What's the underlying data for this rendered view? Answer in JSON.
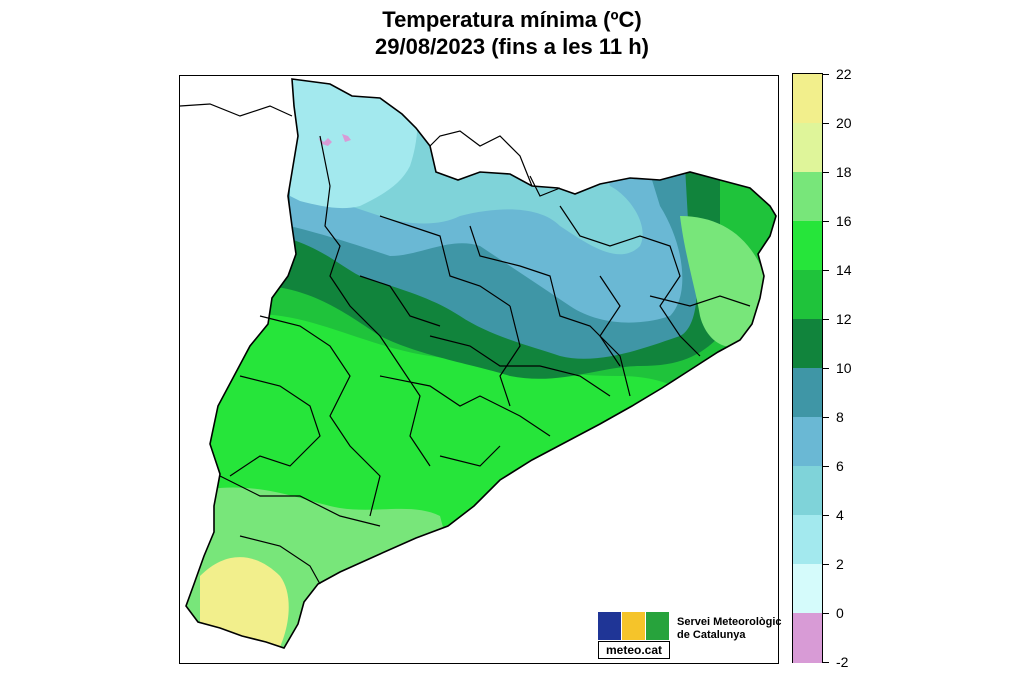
{
  "title": {
    "line1": "Temperatura mínima (ºC)",
    "line2": "29/08/2023 (fins a les 11 h)"
  },
  "legend": {
    "labels": [
      "22",
      "20",
      "18",
      "16",
      "14",
      "12",
      "10",
      "8",
      "6",
      "4",
      "2",
      "0",
      "-2"
    ],
    "colors": [
      "#f2ef8c",
      "#dff59a",
      "#78e67a",
      "#26e53a",
      "#1fc33b",
      "#11843c",
      "#3f96a6",
      "#6ab8d4",
      "#7fd3d9",
      "#a3e9ee",
      "#d5fbfb",
      "#d89bd6"
    ]
  },
  "map": {
    "colors": {
      "high_mountain": "#a3e9ee",
      "mountain": "#7fd3d9",
      "mid_mountain": "#6ab8d4",
      "pre_pyrenees": "#3f96a6",
      "interior_dark": "#11843c",
      "interior": "#1fc33b",
      "bright": "#26e53a",
      "light": "#78e67a",
      "lighter": "#dff59a",
      "warmest": "#f2ef8c",
      "frost": "#d89bd6"
    }
  },
  "logo": {
    "text": "meteo.cat",
    "org_line1": "Servei Meteorològic",
    "org_line2": "de Catalunya",
    "colors": [
      "#1f3596",
      "#f5c42a",
      "#27a33c"
    ]
  }
}
